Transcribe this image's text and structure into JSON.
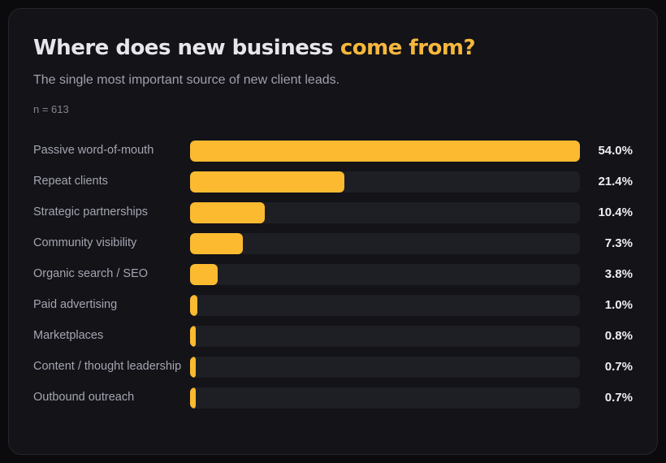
{
  "header": {
    "title_main": "Where does new business ",
    "title_accent": "come from?",
    "subtitle": "The single most important source of new client leads.",
    "sample_size": "n = 613"
  },
  "colors": {
    "bar": "#fcba30",
    "accent": "#f6b73c",
    "track": "#1e1f25",
    "card_background": "#131318",
    "page_background": "#0b0b0e"
  },
  "chart_data": {
    "type": "bar",
    "orientation": "horizontal",
    "title": "Where does new business come from?",
    "subtitle": "The single most important source of new client leads.",
    "sample_note": "n = 613",
    "categories": [
      "Passive word-of-mouth",
      "Repeat clients",
      "Strategic partnerships",
      "Community visibility",
      "Organic search / SEO",
      "Paid advertising",
      "Marketplaces",
      "Content / thought leadership",
      "Outbound outreach"
    ],
    "values": [
      54.0,
      21.4,
      10.4,
      7.3,
      3.8,
      1.0,
      0.8,
      0.7,
      0.7
    ],
    "value_labels": [
      "54.0%",
      "21.4%",
      "10.4%",
      "7.3%",
      "3.8%",
      "1.0%",
      "0.8%",
      "0.7%",
      "0.7%"
    ],
    "unit": "%",
    "bar_scale_max": 54.0,
    "grid": false,
    "legend": false
  }
}
